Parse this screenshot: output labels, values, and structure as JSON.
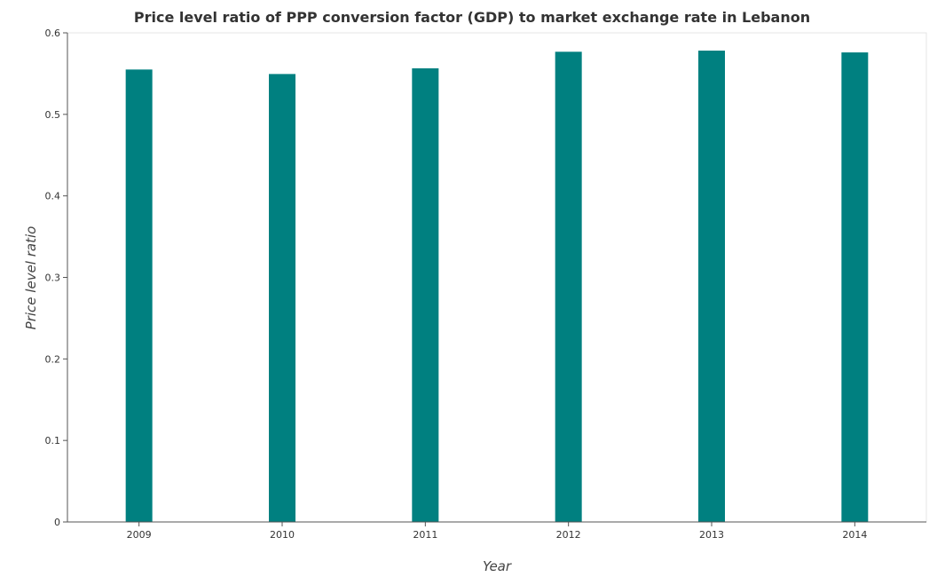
{
  "chart_data": {
    "type": "bar",
    "title": "Price level ratio of PPP conversion factor (GDP) to market exchange rate in Lebanon",
    "xlabel": "Year",
    "ylabel": "Price level ratio",
    "categories": [
      "2009",
      "2010",
      "2011",
      "2012",
      "2013",
      "2014"
    ],
    "values": [
      0.555,
      0.5495,
      0.5565,
      0.5768,
      0.5782,
      0.576
    ],
    "ylim": [
      0,
      0.6
    ],
    "yticks": [
      0,
      0.1,
      0.2,
      0.3,
      0.4,
      0.5,
      0.6
    ],
    "ytick_labels": [
      "0",
      "0.1",
      "0.2",
      "0.3",
      "0.4",
      "0.5",
      "0.6"
    ],
    "grid": false,
    "legend": "none",
    "bar_color": "#008080"
  }
}
